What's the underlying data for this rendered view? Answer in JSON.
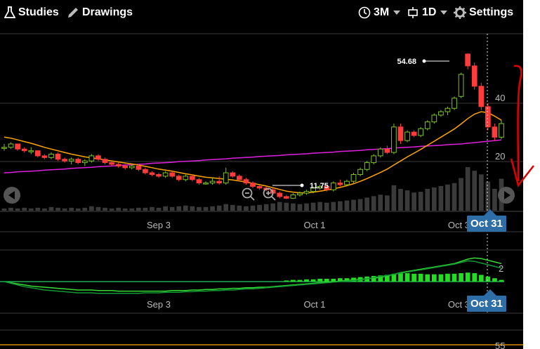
{
  "toolbar": {
    "studies_label": "Studies",
    "drawings_label": "Drawings",
    "range_label": "3M",
    "interval_label": "1D",
    "settings_label": "Settings"
  },
  "chart": {
    "date_ticks": [
      "Sep 3",
      "Oct 1",
      "Oct 31"
    ],
    "price_ticks": [
      "40",
      "20"
    ],
    "oscillator_tick": "2",
    "lower_tick": "55",
    "high_marker": "54.68",
    "low_marker": "11.75",
    "crosshair_date": "Oct 31",
    "colors": {
      "up": "#7dc322",
      "down": "#ff3b3b",
      "ma_short": "#ffa500",
      "ma_long": "#e020e0",
      "volume": "#3a3a3a",
      "histogram": "#22dd22",
      "flag": "#2d6ea7",
      "annotation": "#e00000"
    }
  },
  "chart_data": {
    "type": "candlestick",
    "candles": [
      [
        27,
        28,
        26,
        27
      ],
      [
        27,
        28.5,
        26.5,
        28
      ],
      [
        28,
        28,
        26,
        26.5
      ],
      [
        26.5,
        27,
        25.5,
        26
      ],
      [
        26,
        27,
        25,
        26
      ],
      [
        26,
        26,
        24,
        24.5
      ],
      [
        24.5,
        25,
        23.5,
        24
      ],
      [
        24,
        25.5,
        23.5,
        25
      ],
      [
        25,
        25.5,
        23,
        23.5
      ],
      [
        23.5,
        24,
        22.5,
        23
      ],
      [
        23,
        24,
        22,
        23.5
      ],
      [
        23.5,
        24,
        22,
        22.5
      ],
      [
        22.5,
        23.5,
        21.5,
        23
      ],
      [
        23,
        25,
        22.5,
        24.5
      ],
      [
        24.5,
        25,
        23,
        23.5
      ],
      [
        23.5,
        24,
        22,
        22.5
      ],
      [
        22.5,
        23,
        21.5,
        22
      ],
      [
        22,
        22.5,
        21,
        21.5
      ],
      [
        21.5,
        22,
        20.5,
        21
      ],
      [
        21,
        22,
        20.5,
        21.5
      ],
      [
        21.5,
        22,
        20,
        20.5
      ],
      [
        20.5,
        21,
        19,
        19.5
      ],
      [
        19.5,
        20,
        18.5,
        19
      ],
      [
        19,
        19.5,
        18,
        18.5
      ],
      [
        18.5,
        20,
        18,
        19.5
      ],
      [
        19.5,
        20,
        18,
        18.5
      ],
      [
        18.5,
        19,
        17,
        17.5
      ],
      [
        17.5,
        19,
        17,
        18.5
      ],
      [
        18.5,
        19,
        17,
        17.5
      ],
      [
        17.5,
        18,
        16,
        16.5
      ],
      [
        16.5,
        17,
        16,
        16.5
      ],
      [
        16.5,
        18,
        16,
        17
      ],
      [
        17,
        18.5,
        16,
        16.5
      ],
      [
        16.5,
        21,
        16,
        19.5
      ],
      [
        19.5,
        20,
        18,
        18.5
      ],
      [
        18.5,
        19,
        17,
        17.5
      ],
      [
        17.5,
        18,
        16,
        16.5
      ],
      [
        16.5,
        17,
        15,
        15.5
      ],
      [
        15.5,
        16,
        14.5,
        15
      ],
      [
        15,
        15.5,
        14,
        14.5
      ],
      [
        14.5,
        15,
        13,
        13.5
      ],
      [
        13.5,
        14,
        12,
        12.5
      ],
      [
        12.5,
        13,
        11.75,
        12
      ],
      [
        12,
        13.5,
        11.8,
        13
      ],
      [
        13,
        14,
        12.5,
        13.5
      ],
      [
        13.5,
        14.5,
        13,
        14
      ],
      [
        14,
        15.5,
        13.5,
        15
      ],
      [
        15,
        16,
        14.5,
        15.5
      ],
      [
        15.5,
        16,
        14,
        14.5
      ],
      [
        14.5,
        17,
        14,
        16.5
      ],
      [
        16.5,
        17.5,
        15.5,
        16
      ],
      [
        16,
        17.5,
        15.5,
        17
      ],
      [
        17,
        19.5,
        16.5,
        19
      ],
      [
        19,
        21,
        18.5,
        20.5
      ],
      [
        20.5,
        23,
        20,
        22.5
      ],
      [
        22.5,
        25,
        22,
        24.5
      ],
      [
        24.5,
        27,
        24,
        26.5
      ],
      [
        26.5,
        27.5,
        25,
        25.5
      ],
      [
        25.5,
        34,
        25,
        33
      ],
      [
        33,
        34,
        28,
        29
      ],
      [
        29,
        32,
        28.5,
        31.5
      ],
      [
        31.5,
        32,
        30,
        30.5
      ],
      [
        30.5,
        33,
        30,
        32.5
      ],
      [
        32.5,
        35,
        32,
        34.5
      ],
      [
        34.5,
        37,
        34,
        36.5
      ],
      [
        36.5,
        38,
        36,
        37.5
      ],
      [
        37.5,
        39,
        36.5,
        38.5
      ],
      [
        38.5,
        42,
        38,
        41.5
      ],
      [
        42,
        49,
        41.5,
        48.5
      ],
      [
        54.5,
        54.68,
        50,
        51
      ],
      [
        51,
        52,
        44,
        45
      ],
      [
        45,
        46,
        38,
        39
      ],
      [
        39,
        40,
        32,
        33
      ],
      [
        33,
        34,
        29,
        30
      ],
      [
        30,
        35,
        29.5,
        34
      ]
    ],
    "ma_short": [
      30,
      29.7,
      29.2,
      28.7,
      28.2,
      27.6,
      27,
      26.5,
      26,
      25.5,
      25,
      24.6,
      24.2,
      23.9,
      23.6,
      23.3,
      23,
      22.7,
      22.4,
      22.1,
      21.8,
      21.4,
      21,
      20.6,
      20.3,
      20,
      19.6,
      19.2,
      18.9,
      18.5,
      18.2,
      18,
      17.8,
      17.6,
      17.4,
      17.1,
      16.8,
      16.4,
      16,
      15.6,
      15.1,
      14.6,
      14.1,
      13.8,
      13.6,
      13.6,
      13.8,
      14.1,
      14.4,
      14.8,
      15.2,
      15.7,
      16.3,
      17,
      17.8,
      18.7,
      19.6,
      20.6,
      21.8,
      23,
      24.2,
      25.3,
      26.4,
      27.6,
      28.8,
      30,
      31.2,
      32.4,
      33.9,
      35.5,
      36.8,
      37.5,
      37.2,
      36.2,
      35
    ],
    "ma_long": [
      19.5,
      19.6,
      19.8,
      19.9,
      20,
      20.1,
      20.3,
      20.4,
      20.5,
      20.6,
      20.8,
      20.9,
      21,
      21.1,
      21.3,
      21.4,
      21.5,
      21.6,
      21.8,
      21.9,
      22,
      22.1,
      22.3,
      22.4,
      22.5,
      22.6,
      22.8,
      22.9,
      23,
      23.1,
      23.3,
      23.4,
      23.5,
      23.6,
      23.8,
      23.9,
      24,
      24.1,
      24.3,
      24.4,
      24.5,
      24.6,
      24.8,
      24.9,
      25,
      25.1,
      25.3,
      25.4,
      25.5,
      25.6,
      25.8,
      25.9,
      26,
      26.1,
      26.3,
      26.4,
      26.5,
      26.6,
      26.8,
      26.9,
      27,
      27.1,
      27.3,
      27.4,
      27.5,
      27.6,
      27.8,
      27.9,
      28,
      28.2,
      28.4,
      28.6,
      28.8,
      29,
      29.2
    ],
    "volume": [
      3,
      4,
      3,
      4,
      3,
      4,
      3,
      5,
      4,
      3,
      4,
      3,
      4,
      6,
      5,
      4,
      3,
      4,
      3,
      3,
      4,
      4,
      5,
      4,
      6,
      5,
      6,
      7,
      6,
      5,
      5,
      6,
      7,
      9,
      8,
      7,
      6,
      7,
      8,
      9,
      10,
      12,
      11,
      10,
      9,
      10,
      11,
      12,
      11,
      12,
      13,
      14,
      15,
      16,
      18,
      20,
      22,
      21,
      35,
      30,
      28,
      25,
      26,
      30,
      32,
      34,
      36,
      38,
      45,
      60,
      55,
      50,
      40,
      30,
      44
    ],
    "osc_line1": [
      0,
      -0.2,
      -0.4,
      -0.6,
      -0.8,
      -0.9,
      -1,
      -1.1,
      -1.2,
      -1.3,
      -1.4,
      -1.5,
      -1.5,
      -1.5,
      -1.6,
      -1.6,
      -1.6,
      -1.7,
      -1.7,
      -1.7,
      -1.7,
      -1.7,
      -1.7,
      -1.7,
      -1.7,
      -1.6,
      -1.6,
      -1.6,
      -1.5,
      -1.5,
      -1.4,
      -1.4,
      -1.3,
      -1.3,
      -1.2,
      -1.2,
      -1.1,
      -1.1,
      -1,
      -1,
      -0.9,
      -0.8,
      -0.7,
      -0.6,
      -0.5,
      -0.4,
      -0.3,
      -0.2,
      -0.1,
      0,
      0.1,
      0.2,
      0.3,
      0.4,
      0.5,
      0.6,
      0.8,
      1,
      1.3,
      1.6,
      1.8,
      2,
      2.2,
      2.4,
      2.6,
      2.8,
      3,
      3.2,
      3.6,
      4,
      4.2,
      4.1,
      3.8,
      3.5,
      3.2
    ],
    "osc_line2": [
      0,
      -0.3,
      -0.6,
      -0.9,
      -1.1,
      -1.3,
      -1.5,
      -1.6,
      -1.7,
      -1.8,
      -1.9,
      -2,
      -2,
      -2,
      -2.1,
      -2.1,
      -2.1,
      -2.1,
      -2.1,
      -2.1,
      -2.1,
      -2,
      -2,
      -2,
      -1.9,
      -1.9,
      -1.9,
      -1.8,
      -1.8,
      -1.7,
      -1.7,
      -1.6,
      -1.6,
      -1.5,
      -1.5,
      -1.4,
      -1.3,
      -1.3,
      -1.2,
      -1.1,
      -1,
      -0.9,
      -0.8,
      -0.7,
      -0.6,
      -0.5,
      -0.4,
      -0.3,
      -0.2,
      -0.1,
      0,
      0.1,
      0.2,
      0.3,
      0.5,
      0.7,
      0.9,
      1.1,
      1.3,
      1.5,
      1.7,
      1.9,
      2.1,
      2.3,
      2.5,
      2.7,
      2.9,
      3.1,
      3.4,
      3.7,
      3.6,
      3.3,
      3,
      2.7,
      2.4
    ],
    "osc_hist": [
      0,
      0,
      0,
      0,
      0,
      0,
      0,
      0,
      0,
      0,
      0,
      0,
      0,
      0,
      0,
      0,
      0,
      0,
      0,
      0,
      0,
      0,
      0,
      0,
      0,
      0,
      0,
      0,
      0,
      0,
      0,
      0,
      0,
      0,
      0,
      0,
      0,
      0,
      0,
      0,
      0,
      0,
      0.2,
      0.3,
      0.3,
      0.4,
      0.4,
      0.5,
      0.5,
      0.5,
      0.6,
      0.6,
      0.7,
      0.8,
      0.9,
      1,
      1.1,
      1.2,
      1.4,
      1.5,
      1.5,
      1.4,
      1.4,
      1.3,
      1.3,
      1.3,
      1.4,
      1.4,
      1.5,
      1.6,
      1.5,
      1.2,
      0.9,
      0.6,
      0.3
    ],
    "price_range": [
      10,
      58
    ]
  }
}
